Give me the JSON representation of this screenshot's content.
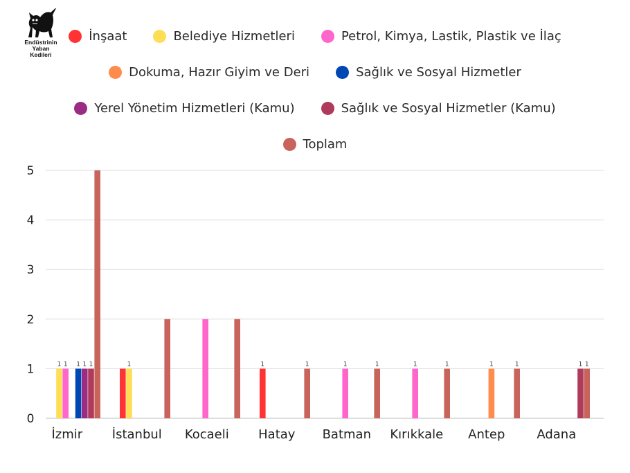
{
  "logo": {
    "icon": "black-cat-icon",
    "lines": [
      "Endüstrinin",
      "Yaban",
      "Kedileri"
    ]
  },
  "chart_data": {
    "type": "bar",
    "categories": [
      "İzmir",
      "İstanbul",
      "Kocaeli",
      "Hatay",
      "Batman",
      "Kırıkkale",
      "Antep",
      "Adana"
    ],
    "series": [
      {
        "name": "İnşaat",
        "color": "#ff3333",
        "values": [
          0,
          1,
          0,
          1,
          0,
          0,
          0,
          0
        ]
      },
      {
        "name": "Belediye Hizmetleri",
        "color": "#ffdd55",
        "values": [
          1,
          1,
          0,
          0,
          0,
          0,
          0,
          0
        ]
      },
      {
        "name": "Petrol, Kimya, Lastik, Plastik ve İlaç",
        "color": "#ff66cc",
        "values": [
          1,
          0,
          2,
          0,
          1,
          1,
          0,
          0
        ]
      },
      {
        "name": "Dokuma, Hazır Giyim ve Deri",
        "color": "#ff8c4a",
        "values": [
          0,
          0,
          0,
          0,
          0,
          0,
          1,
          0
        ]
      },
      {
        "name": "Sağlık ve Sosyal Hizmetler",
        "color": "#0047b3",
        "values": [
          1,
          0,
          0,
          0,
          0,
          0,
          0,
          0
        ]
      },
      {
        "name": "Yerel Yönetim Hizmetleri (Kamu)",
        "color": "#9b2c84",
        "values": [
          1,
          0,
          0,
          0,
          0,
          0,
          0,
          0
        ]
      },
      {
        "name": "Sağlık ve Sosyal Hizmetler (Kamu)",
        "color": "#b03a5b",
        "values": [
          1,
          0,
          0,
          0,
          0,
          0,
          0,
          1
        ]
      },
      {
        "name": "Toplam",
        "color": "#c8645c",
        "values": [
          5,
          2,
          2,
          1,
          1,
          1,
          1,
          1
        ]
      }
    ],
    "data_labels": [
      [
        0,
        0,
        0,
        1,
        0,
        0,
        0,
        0
      ],
      [
        1,
        1,
        0,
        0,
        0,
        0,
        0,
        0
      ],
      [
        1,
        0,
        0,
        0,
        1,
        1,
        0,
        0
      ],
      [
        0,
        0,
        0,
        0,
        0,
        0,
        1,
        0
      ],
      [
        1,
        0,
        0,
        0,
        0,
        0,
        0,
        0
      ],
      [
        1,
        0,
        0,
        0,
        0,
        0,
        0,
        0
      ],
      [
        1,
        0,
        0,
        0,
        0,
        0,
        0,
        1
      ],
      [
        0,
        0,
        0,
        1,
        1,
        1,
        1,
        1
      ]
    ],
    "title": "",
    "xlabel": "",
    "ylabel": "",
    "ylim": [
      0,
      5
    ],
    "yticks": [
      0,
      1,
      2,
      3,
      4,
      5
    ],
    "grid": true,
    "legend_position": "top-center"
  }
}
